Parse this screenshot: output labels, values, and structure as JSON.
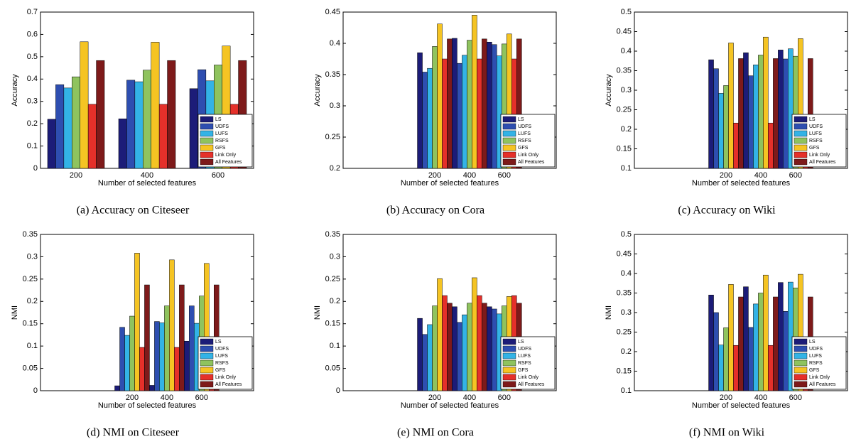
{
  "chart_data": [
    {
      "type": "bar",
      "caption": "(a) Accuracy on Citeseer",
      "xlabel": "Number of selected features",
      "ylabel": "Accuracy",
      "categories": [
        "200",
        "400",
        "600"
      ],
      "ylim": [
        0,
        0.7
      ],
      "yticks": [
        0,
        0.1,
        0.2,
        0.3,
        0.4,
        0.5,
        0.6,
        0.7
      ],
      "legend": "lower right",
      "series": [
        {
          "name": "LS",
          "color": "#1c1c78",
          "values": [
            0.22,
            0.222,
            0.357
          ]
        },
        {
          "name": "UDFS",
          "color": "#2e4eb0",
          "values": [
            0.375,
            0.395,
            0.442
          ]
        },
        {
          "name": "LUFS",
          "color": "#33b3e6",
          "values": [
            0.36,
            0.388,
            0.392
          ]
        },
        {
          "name": "RSFS",
          "color": "#8fc35e",
          "values": [
            0.41,
            0.44,
            0.463
          ]
        },
        {
          "name": "GFS",
          "color": "#f5c423",
          "values": [
            0.567,
            0.565,
            0.548
          ]
        },
        {
          "name": "Link Only",
          "color": "#e5302a",
          "values": [
            0.287,
            0.287,
            0.287
          ]
        },
        {
          "name": "All Features",
          "color": "#7e1a1a",
          "values": [
            0.483,
            0.483,
            0.483
          ]
        }
      ]
    },
    {
      "type": "bar",
      "caption": "(b) Accuracy on Cora",
      "xlabel": "Number of selected features",
      "ylabel": "Accuracy",
      "categories": [
        "200",
        "400",
        "600"
      ],
      "ylim": [
        0.2,
        0.45
      ],
      "yticks": [
        0.2,
        0.25,
        0.3,
        0.35,
        0.4,
        0.45
      ],
      "legend": "lower right",
      "series": [
        {
          "name": "LS",
          "color": "#1c1c78",
          "values": [
            0.385,
            0.408,
            0.402
          ]
        },
        {
          "name": "UDFS",
          "color": "#2e4eb0",
          "values": [
            0.354,
            0.368,
            0.398
          ]
        },
        {
          "name": "LUFS",
          "color": "#33b3e6",
          "values": [
            0.36,
            0.381,
            0.38
          ]
        },
        {
          "name": "RSFS",
          "color": "#8fc35e",
          "values": [
            0.395,
            0.405,
            0.399
          ]
        },
        {
          "name": "GFS",
          "color": "#f5c423",
          "values": [
            0.431,
            0.445,
            0.415
          ]
        },
        {
          "name": "Link Only",
          "color": "#e5302a",
          "values": [
            0.375,
            0.375,
            0.375
          ]
        },
        {
          "name": "All Features",
          "color": "#7e1a1a",
          "values": [
            0.407,
            0.407,
            0.407
          ]
        }
      ]
    },
    {
      "type": "bar",
      "caption": "(c) Accuracy on Wiki",
      "xlabel": "Number of selected features",
      "ylabel": "Accuracy",
      "categories": [
        "200",
        "400",
        "600"
      ],
      "ylim": [
        0.1,
        0.5
      ],
      "yticks": [
        0.1,
        0.15,
        0.2,
        0.25,
        0.3,
        0.35,
        0.4,
        0.45,
        0.5
      ],
      "legend": "lower right",
      "series": [
        {
          "name": "LS",
          "color": "#1c1c78",
          "values": [
            0.378,
            0.396,
            0.403
          ]
        },
        {
          "name": "UDFS",
          "color": "#2e4eb0",
          "values": [
            0.355,
            0.337,
            0.38
          ]
        },
        {
          "name": "LUFS",
          "color": "#33b3e6",
          "values": [
            0.292,
            0.365,
            0.406
          ]
        },
        {
          "name": "RSFS",
          "color": "#8fc35e",
          "values": [
            0.312,
            0.39,
            0.387
          ]
        },
        {
          "name": "GFS",
          "color": "#f5c423",
          "values": [
            0.421,
            0.436,
            0.432
          ]
        },
        {
          "name": "Link Only",
          "color": "#e5302a",
          "values": [
            0.216,
            0.216,
            0.216
          ]
        },
        {
          "name": "All Features",
          "color": "#7e1a1a",
          "values": [
            0.381,
            0.381,
            0.381
          ]
        }
      ]
    },
    {
      "type": "bar",
      "caption": "(d) NMI on Citeseer",
      "xlabel": "Number of selected features",
      "ylabel": "NMI",
      "categories": [
        "200",
        "400",
        "600"
      ],
      "ylim": [
        0,
        0.35
      ],
      "yticks": [
        0,
        0.05,
        0.1,
        0.15,
        0.2,
        0.25,
        0.3,
        0.35
      ],
      "legend": "lower right",
      "series": [
        {
          "name": "LS",
          "color": "#1c1c78",
          "values": [
            0.011,
            0.012,
            0.111
          ]
        },
        {
          "name": "UDFS",
          "color": "#2e4eb0",
          "values": [
            0.142,
            0.155,
            0.19
          ]
        },
        {
          "name": "LUFS",
          "color": "#33b3e6",
          "values": [
            0.124,
            0.152,
            0.151
          ]
        },
        {
          "name": "RSFS",
          "color": "#8fc35e",
          "values": [
            0.167,
            0.19,
            0.212
          ]
        },
        {
          "name": "GFS",
          "color": "#f5c423",
          "values": [
            0.308,
            0.293,
            0.285
          ]
        },
        {
          "name": "Link Only",
          "color": "#e5302a",
          "values": [
            0.097,
            0.097,
            0.097
          ]
        },
        {
          "name": "All Features",
          "color": "#7e1a1a",
          "values": [
            0.237,
            0.237,
            0.237
          ]
        }
      ]
    },
    {
      "type": "bar",
      "caption": "(e) NMI on Cora",
      "xlabel": "Number of selected features",
      "ylabel": "NMI",
      "categories": [
        "200",
        "400",
        "600"
      ],
      "ylim": [
        0,
        0.35
      ],
      "yticks": [
        0,
        0.05,
        0.1,
        0.15,
        0.2,
        0.25,
        0.3,
        0.35
      ],
      "legend": "lower right",
      "series": [
        {
          "name": "LS",
          "color": "#1c1c78",
          "values": [
            0.162,
            0.188,
            0.188
          ]
        },
        {
          "name": "UDFS",
          "color": "#2e4eb0",
          "values": [
            0.126,
            0.153,
            0.183
          ]
        },
        {
          "name": "LUFS",
          "color": "#33b3e6",
          "values": [
            0.148,
            0.17,
            0.172
          ]
        },
        {
          "name": "RSFS",
          "color": "#8fc35e",
          "values": [
            0.19,
            0.196,
            0.19
          ]
        },
        {
          "name": "GFS",
          "color": "#f5c423",
          "values": [
            0.251,
            0.253,
            0.211
          ]
        },
        {
          "name": "Link Only",
          "color": "#e5302a",
          "values": [
            0.213,
            0.213,
            0.213
          ]
        },
        {
          "name": "All Features",
          "color": "#7e1a1a",
          "values": [
            0.196,
            0.196,
            0.196
          ]
        }
      ]
    },
    {
      "type": "bar",
      "caption": "(f) NMI on Wiki",
      "xlabel": "Number of selected features",
      "ylabel": "NMI",
      "categories": [
        "200",
        "400",
        "600"
      ],
      "ylim": [
        0.1,
        0.5
      ],
      "yticks": [
        0.1,
        0.15,
        0.2,
        0.25,
        0.3,
        0.35,
        0.4,
        0.45,
        0.5
      ],
      "legend": "lower right",
      "series": [
        {
          "name": "LS",
          "color": "#1c1c78",
          "values": [
            0.345,
            0.366,
            0.377
          ]
        },
        {
          "name": "UDFS",
          "color": "#2e4eb0",
          "values": [
            0.3,
            0.262,
            0.303
          ]
        },
        {
          "name": "LUFS",
          "color": "#33b3e6",
          "values": [
            0.217,
            0.322,
            0.378
          ]
        },
        {
          "name": "RSFS",
          "color": "#8fc35e",
          "values": [
            0.261,
            0.35,
            0.363
          ]
        },
        {
          "name": "GFS",
          "color": "#f5c423",
          "values": [
            0.372,
            0.396,
            0.398
          ]
        },
        {
          "name": "Link Only",
          "color": "#e5302a",
          "values": [
            0.216,
            0.216,
            0.216
          ]
        },
        {
          "name": "All Features",
          "color": "#7e1a1a",
          "values": [
            0.34,
            0.34,
            0.34
          ]
        }
      ]
    }
  ]
}
